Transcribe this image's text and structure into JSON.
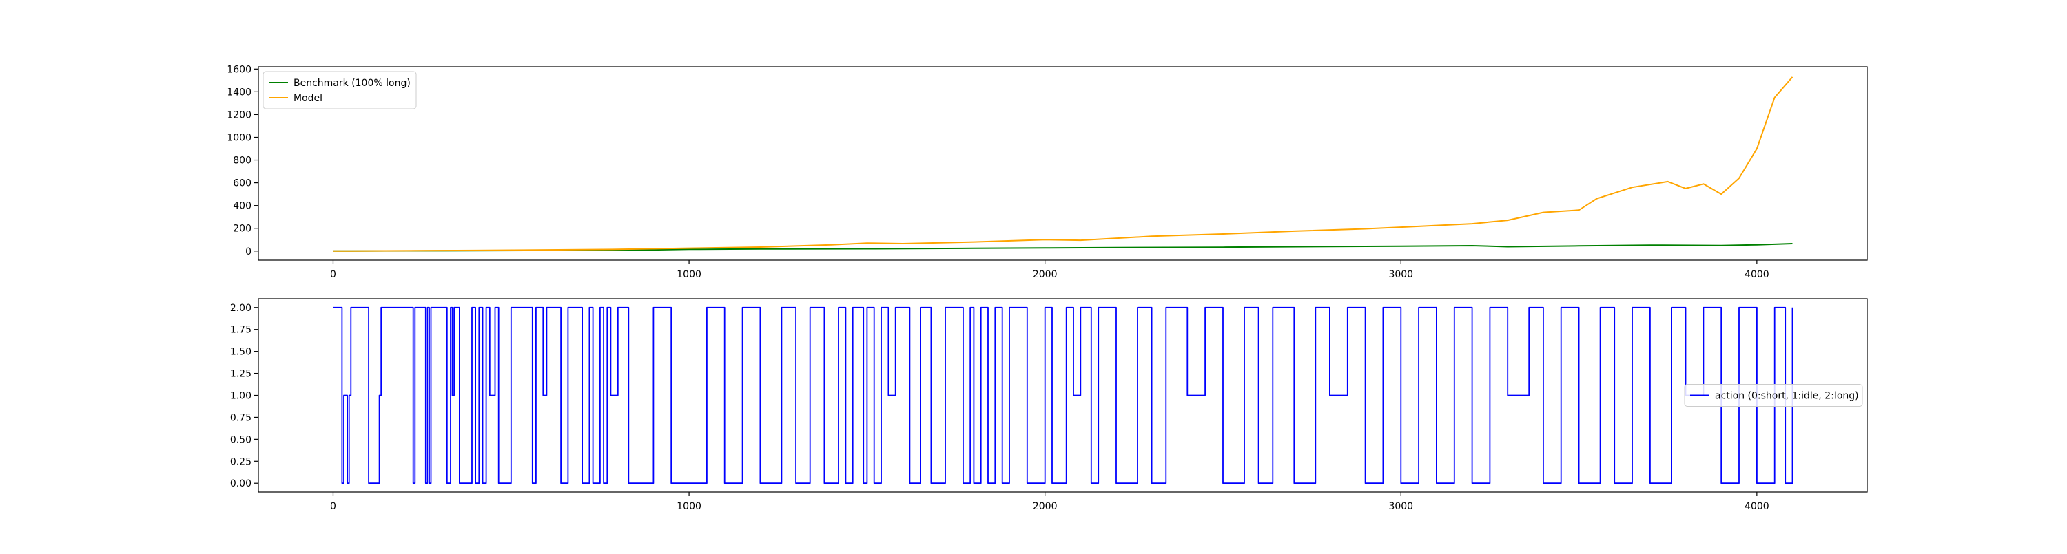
{
  "chart_data": [
    {
      "type": "line",
      "title": "",
      "xlabel": "",
      "ylabel": "",
      "xlim": [
        -210,
        4310
      ],
      "ylim": [
        -80,
        1620
      ],
      "xticks": [
        0,
        1000,
        2000,
        3000,
        4000
      ],
      "yticks": [
        0,
        200,
        400,
        600,
        800,
        1000,
        1200,
        1400,
        1600
      ],
      "legend": {
        "position": "top-left"
      },
      "grid": false,
      "series": [
        {
          "name": "Benchmark (100% long)",
          "color": "#008000",
          "x": [
            0,
            300,
            600,
            900,
            1000,
            1200,
            1500,
            1800,
            2000,
            2200,
            2500,
            2800,
            3000,
            3200,
            3300,
            3500,
            3700,
            3900,
            4000,
            4100
          ],
          "y": [
            0,
            2,
            5,
            10,
            15,
            18,
            20,
            24,
            27,
            30,
            34,
            40,
            43,
            47,
            38,
            45,
            52,
            48,
            55,
            65
          ]
        },
        {
          "name": "Model",
          "color": "#ffa500",
          "x": [
            0,
            400,
            800,
            1000,
            1200,
            1400,
            1500,
            1600,
            1800,
            2000,
            2100,
            2300,
            2500,
            2700,
            2900,
            3000,
            3100,
            3200,
            3300,
            3400,
            3500,
            3550,
            3650,
            3750,
            3800,
            3850,
            3900,
            3950,
            4000,
            4050,
            4100
          ],
          "y": [
            0,
            5,
            15,
            25,
            35,
            55,
            70,
            65,
            80,
            100,
            95,
            130,
            150,
            175,
            195,
            210,
            225,
            240,
            270,
            340,
            360,
            460,
            560,
            610,
            550,
            590,
            500,
            640,
            900,
            1350,
            1530
          ]
        }
      ]
    },
    {
      "type": "line",
      "title": "",
      "xlabel": "",
      "ylabel": "",
      "xlim": [
        -210,
        4310
      ],
      "ylim": [
        -0.1,
        2.1
      ],
      "xticks": [
        0,
        1000,
        2000,
        3000,
        4000
      ],
      "yticks": [
        "0.00",
        "0.25",
        "0.50",
        "0.75",
        "1.00",
        "1.25",
        "1.50",
        "1.75",
        "2.00"
      ],
      "legend": {
        "position": "center-right"
      },
      "grid": false,
      "series": [
        {
          "name": "action (0:short, 1:idle, 2:long)",
          "color": "#0000ff",
          "step": true,
          "x": [
            0,
            25,
            30,
            40,
            45,
            50,
            55,
            100,
            130,
            135,
            225,
            230,
            260,
            265,
            270,
            275,
            320,
            330,
            335,
            340,
            355,
            390,
            400,
            410,
            420,
            430,
            440,
            455,
            465,
            500,
            560,
            570,
            590,
            600,
            640,
            660,
            700,
            720,
            730,
            750,
            760,
            770,
            780,
            800,
            830,
            900,
            950,
            1050,
            1100,
            1150,
            1200,
            1260,
            1300,
            1340,
            1380,
            1420,
            1440,
            1460,
            1490,
            1500,
            1520,
            1540,
            1560,
            1580,
            1620,
            1650,
            1680,
            1720,
            1770,
            1790,
            1800,
            1820,
            1840,
            1860,
            1880,
            1900,
            1950,
            2000,
            2020,
            2060,
            2080,
            2100,
            2130,
            2150,
            2200,
            2260,
            2300,
            2340,
            2400,
            2450,
            2500,
            2560,
            2600,
            2640,
            2700,
            2760,
            2800,
            2850,
            2900,
            2950,
            3000,
            3050,
            3100,
            3150,
            3200,
            3250,
            3300,
            3360,
            3400,
            3450,
            3500,
            3560,
            3600,
            3650,
            3700,
            3760,
            3800,
            3850,
            3900,
            3950,
            4000,
            4050,
            4080,
            4100
          ],
          "y": [
            2,
            0,
            1,
            0,
            1,
            2,
            2,
            0,
            1,
            2,
            0,
            2,
            0,
            2,
            0,
            2,
            0,
            2,
            1,
            2,
            0,
            2,
            0,
            2,
            0,
            2,
            1,
            2,
            0,
            2,
            0,
            2,
            1,
            2,
            0,
            2,
            0,
            2,
            0,
            2,
            0,
            2,
            1,
            2,
            0,
            2,
            0,
            2,
            0,
            2,
            0,
            2,
            0,
            2,
            0,
            2,
            0,
            2,
            0,
            2,
            0,
            2,
            1,
            2,
            0,
            2,
            0,
            2,
            0,
            2,
            0,
            2,
            0,
            2,
            0,
            2,
            0,
            2,
            0,
            2,
            1,
            2,
            0,
            2,
            0,
            2,
            0,
            2,
            1,
            2,
            0,
            2,
            0,
            2,
            0,
            2,
            1,
            2,
            0,
            2,
            0,
            2,
            0,
            2,
            0,
            2,
            1,
            2,
            0,
            2,
            0,
            2,
            0,
            2,
            0,
            2,
            1,
            2,
            0,
            2,
            0,
            2,
            0,
            2
          ]
        }
      ]
    }
  ]
}
